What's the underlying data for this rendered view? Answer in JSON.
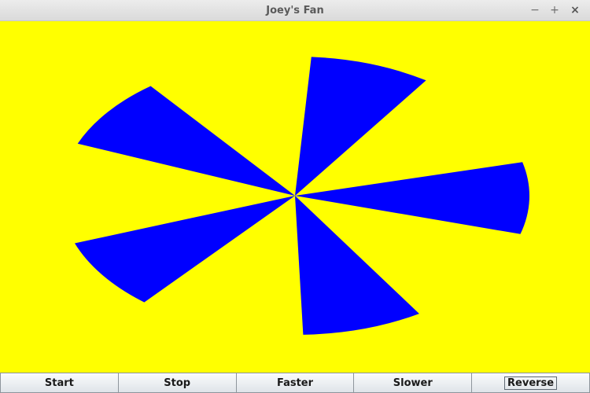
{
  "window": {
    "title": "Joey's Fan",
    "controls": [
      "minimize",
      "maximize",
      "close"
    ],
    "control_glyphs": {
      "minimize": "−",
      "maximize": "+",
      "close": "×"
    }
  },
  "canvas": {
    "background_color": "#ffff00",
    "blade_color": "#0000ff",
    "blade_count": 5
  },
  "buttons": [
    {
      "label": "Start"
    },
    {
      "label": "Stop"
    },
    {
      "label": "Faster"
    },
    {
      "label": "Slower"
    },
    {
      "label": "Reverse",
      "focused": true
    }
  ]
}
